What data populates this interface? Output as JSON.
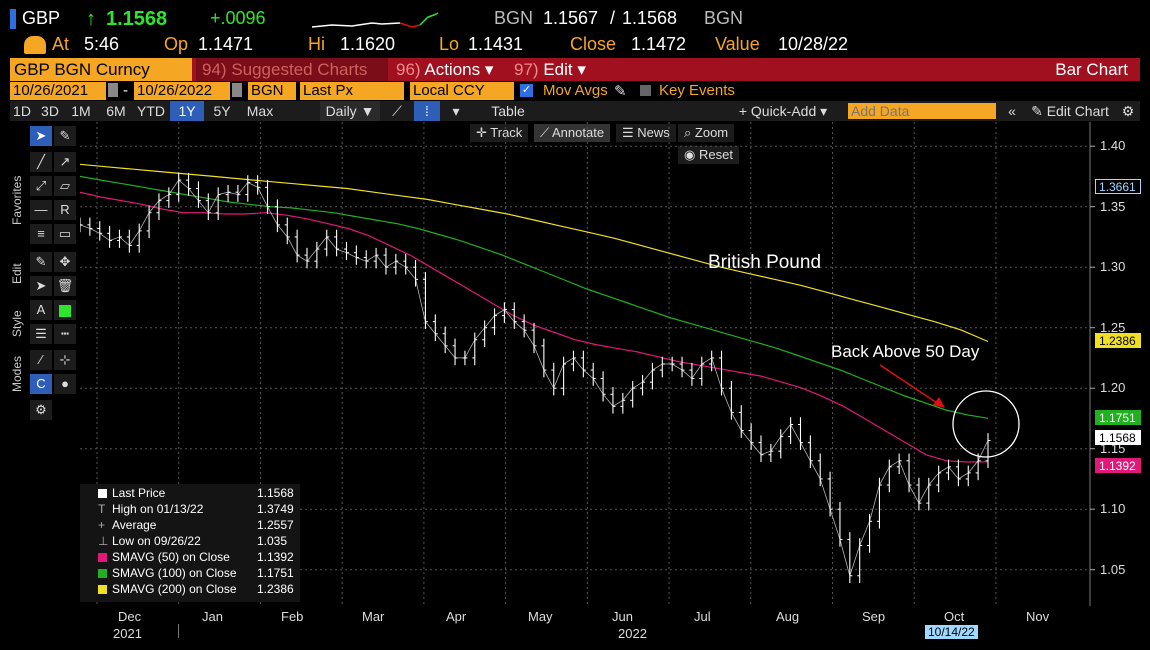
{
  "header": {
    "ticker": "GBP",
    "arrow": "↑",
    "last": "1.1568",
    "change": "+.0096",
    "source": "BGN",
    "bid": "1.1567",
    "slash": "/",
    "ask": "1.1568",
    "source2": "BGN",
    "at_label": "At",
    "time": "5:46",
    "op_label": "Op",
    "op": "1.1471",
    "hi_label": "Hi",
    "hi": "1.1620",
    "lo_label": "Lo",
    "lo": "1.1431",
    "close_label": "Close",
    "close": "1.1472",
    "value_label": "Value",
    "value_date": "10/28/22"
  },
  "menubar": {
    "security": "GBP BGN Curncy",
    "suggested_num": "94)",
    "suggested": "Suggested Charts",
    "actions_num": "96)",
    "actions": "Actions",
    "edit_num": "97)",
    "edit": "Edit",
    "view": "Bar Chart"
  },
  "params": {
    "start_date": "10/26/2021",
    "dash": "-",
    "end_date": "10/26/2022",
    "source": "BGN",
    "field": "Last Px",
    "currency": "Local CCY",
    "mov_avgs": "Mov Avgs",
    "key_events": "Key Events"
  },
  "toolbar": {
    "ranges": [
      "1D",
      "3D",
      "1M",
      "6M",
      "YTD",
      "1Y",
      "5Y",
      "Max"
    ],
    "selected_range": "1Y",
    "periodicity": "Daily ▼",
    "table": "Table",
    "quick_add": "+ Quick-Add ▾",
    "add_data_placeholder": "Add Data",
    "edit_chart": "Edit Chart"
  },
  "chart_tools": {
    "track": "Track",
    "annotate": "Annotate",
    "news": "News",
    "zoom": "Zoom",
    "reset": "Reset"
  },
  "side_tabs": [
    "Favorites",
    "Edit",
    "Style",
    "Modes"
  ],
  "annotations": {
    "series_label": "British Pound",
    "callout": "Back Above 50 Day"
  },
  "legend": [
    {
      "label": "Last Price",
      "value": "1.1568",
      "color": "#ffffff"
    },
    {
      "label": "High on 01/13/22",
      "value": "1.3749",
      "color": "none"
    },
    {
      "label": "Average",
      "value": "1.2557",
      "color": "none"
    },
    {
      "label": "Low on 09/26/22",
      "value": "1.035",
      "color": "none"
    },
    {
      "label": "SMAVG (50)  on Close",
      "value": "1.1392",
      "color": "#e0187a"
    },
    {
      "label": "SMAVG (100)  on Close",
      "value": "1.1751",
      "color": "#20b020"
    },
    {
      "label": "SMAVG (200)  on Close",
      "value": "1.2386",
      "color": "#f0e020"
    }
  ],
  "y_tags": [
    {
      "value": "1.3661",
      "bg": "#000000",
      "fg": "#9fd9ff",
      "border": "#9fd9ff"
    },
    {
      "value": "1.2386",
      "bg": "#f0e020",
      "fg": "#000000",
      "border": "#f0e020"
    },
    {
      "value": "1.1751",
      "bg": "#20b020",
      "fg": "#ffffff",
      "border": "#20b020"
    },
    {
      "value": "1.1568",
      "bg": "#ffffff",
      "fg": "#000000",
      "border": "#ffffff"
    },
    {
      "value": "1.1392",
      "bg": "#e0187a",
      "fg": "#ffffff",
      "border": "#e0187a"
    }
  ],
  "colors": {
    "accent_orange": "#f5a623",
    "menu_red": "#a0101e",
    "price": "#ffffff",
    "sma50": "#e0187a",
    "sma100": "#20b020",
    "sma200": "#f0e020",
    "callout_arrow": "#e01010"
  },
  "chart_data": {
    "type": "line",
    "x_ticks": [
      "Dec",
      "Jan",
      "Feb",
      "Mar",
      "Apr",
      "May",
      "Jun",
      "Jul",
      "Aug",
      "Sep",
      "Oct",
      "Nov"
    ],
    "year_labels": [
      "2021",
      "2022"
    ],
    "cursor_date": "10/14/22",
    "y_ticks": [
      "1.40",
      "1.35",
      "1.30",
      "1.25",
      "1.20",
      "1.15",
      "1.10",
      "1.05"
    ],
    "ylim": [
      1.02,
      1.42
    ],
    "grid": true,
    "legend_position": "bottom-left",
    "series": [
      {
        "name": "Last Price",
        "values": [
          1.335,
          1.332,
          1.328,
          1.322,
          1.325,
          1.318,
          1.33,
          1.345,
          1.355,
          1.36,
          1.372,
          1.365,
          1.355,
          1.345,
          1.36,
          1.362,
          1.36,
          1.37,
          1.366,
          1.35,
          1.335,
          1.325,
          1.31,
          1.305,
          1.315,
          1.325,
          1.315,
          1.312,
          1.308,
          1.305,
          1.31,
          1.3,
          1.305,
          1.3,
          1.29,
          1.255,
          1.245,
          1.235,
          1.225,
          1.225,
          1.24,
          1.25,
          1.26,
          1.265,
          1.255,
          1.248,
          1.235,
          1.215,
          1.2,
          1.22,
          1.225,
          1.215,
          1.208,
          1.195,
          1.185,
          1.19,
          1.2,
          1.205,
          1.215,
          1.22,
          1.22,
          1.215,
          1.208,
          1.22,
          1.225,
          1.2,
          1.18,
          1.165,
          1.155,
          1.145,
          1.148,
          1.16,
          1.17,
          1.155,
          1.14,
          1.125,
          1.1,
          1.075,
          1.045,
          1.07,
          1.09,
          1.12,
          1.135,
          1.14,
          1.12,
          1.105,
          1.12,
          1.13,
          1.135,
          1.125,
          1.13,
          1.14,
          1.1568
        ]
      },
      {
        "name": "SMAVG (50)",
        "values": [
          1.362,
          1.358,
          1.355,
          1.352,
          1.348,
          1.345,
          1.345,
          1.344,
          1.344,
          1.345,
          1.343,
          1.34,
          1.336,
          1.332,
          1.326,
          1.318,
          1.31,
          1.3,
          1.29,
          1.28,
          1.27,
          1.26,
          1.252,
          1.246,
          1.24,
          1.236,
          1.233,
          1.23,
          1.226,
          1.222,
          1.219,
          1.216,
          1.213,
          1.21,
          1.205,
          1.2,
          1.193,
          1.185,
          1.175,
          1.165,
          1.155,
          1.145,
          1.14,
          1.139,
          1.1392
        ]
      },
      {
        "name": "SMAVG (100)",
        "values": [
          1.375,
          1.372,
          1.369,
          1.366,
          1.363,
          1.36,
          1.357,
          1.354,
          1.352,
          1.35,
          1.349,
          1.347,
          1.345,
          1.342,
          1.339,
          1.336,
          1.332,
          1.327,
          1.322,
          1.316,
          1.31,
          1.303,
          1.296,
          1.289,
          1.282,
          1.276,
          1.27,
          1.264,
          1.258,
          1.253,
          1.248,
          1.243,
          1.238,
          1.233,
          1.227,
          1.221,
          1.215,
          1.208,
          1.201,
          1.194,
          1.188,
          1.182,
          1.178,
          1.1751
        ]
      },
      {
        "name": "SMAVG (200)",
        "values": [
          1.385,
          1.383,
          1.381,
          1.379,
          1.377,
          1.375,
          1.373,
          1.371,
          1.369,
          1.367,
          1.365,
          1.362,
          1.359,
          1.356,
          1.352,
          1.348,
          1.344,
          1.339,
          1.334,
          1.329,
          1.324,
          1.318,
          1.312,
          1.306,
          1.3,
          1.295,
          1.29,
          1.285,
          1.279,
          1.273,
          1.267,
          1.261,
          1.255,
          1.248,
          1.2386
        ]
      }
    ]
  }
}
